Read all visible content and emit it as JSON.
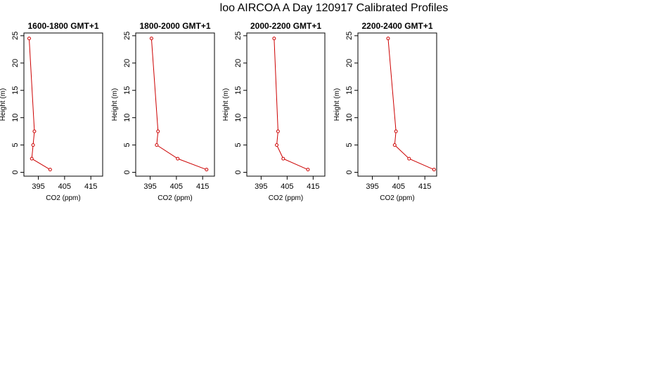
{
  "title": "loo AIRCOA A  Day 120917  Calibrated Profiles",
  "chart_data": [
    {
      "type": "line",
      "title": "1600-1800 GMT+1",
      "xlabel": "CO2 (ppm)",
      "ylabel": "Height (m)",
      "xticks": [
        395,
        405,
        415
      ],
      "yticks": [
        0,
        5,
        10,
        15,
        20,
        25
      ],
      "xlim": [
        389.5,
        419.5
      ],
      "ylim": [
        -0.7,
        25.5
      ],
      "color": "#cc0000",
      "x": [
        391.5,
        393.5,
        393.0,
        392.5,
        399.5
      ],
      "y": [
        24.5,
        7.5,
        5.0,
        2.5,
        0.5
      ]
    },
    {
      "type": "line",
      "title": "1800-2000 GMT+1",
      "xlabel": "CO2 (ppm)",
      "ylabel": "Height (m)",
      "xticks": [
        395,
        405,
        415
      ],
      "yticks": [
        0,
        5,
        10,
        15,
        20,
        25
      ],
      "xlim": [
        389.5,
        419.5
      ],
      "ylim": [
        -0.7,
        25.5
      ],
      "color": "#cc0000",
      "x": [
        395.5,
        398.0,
        397.5,
        405.5,
        416.5
      ],
      "y": [
        24.5,
        7.5,
        5.0,
        2.5,
        0.5
      ]
    },
    {
      "type": "line",
      "title": "2000-2200 GMT+1",
      "xlabel": "CO2 (ppm)",
      "ylabel": "Height (m)",
      "xticks": [
        395,
        405,
        415
      ],
      "yticks": [
        0,
        5,
        10,
        15,
        20,
        25
      ],
      "xlim": [
        389.5,
        419.5
      ],
      "ylim": [
        -0.7,
        25.5
      ],
      "color": "#cc0000",
      "x": [
        400.0,
        401.5,
        401.0,
        403.5,
        413.0
      ],
      "y": [
        24.5,
        7.5,
        5.0,
        2.5,
        0.5
      ]
    },
    {
      "type": "line",
      "title": "2200-2400 GMT+1",
      "xlabel": "CO2 (ppm)",
      "ylabel": "Height (m)",
      "xticks": [
        395,
        405,
        415
      ],
      "yticks": [
        0,
        5,
        10,
        15,
        20,
        25
      ],
      "xlim": [
        389.5,
        419.5
      ],
      "ylim": [
        -0.7,
        25.5
      ],
      "color": "#cc0000",
      "x": [
        401.0,
        404.0,
        403.5,
        409.0,
        418.5
      ],
      "y": [
        24.5,
        7.5,
        5.0,
        2.5,
        0.5
      ]
    }
  ]
}
